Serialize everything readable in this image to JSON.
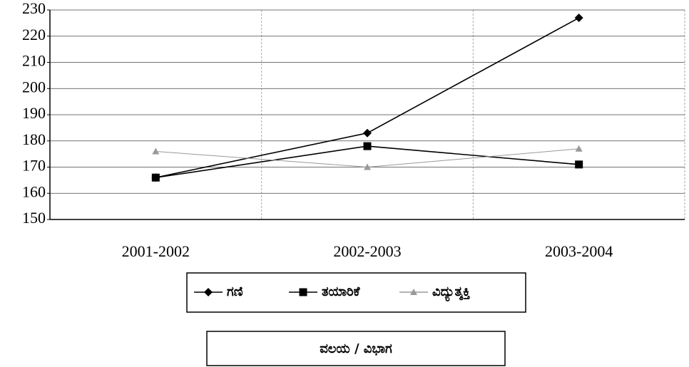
{
  "chart_data": {
    "type": "line",
    "categories": [
      "2001-2002",
      "2002-2003",
      "2003-2004"
    ],
    "series": [
      {
        "name": "ಗಣಿ",
        "color": "#000000",
        "marker": "diamond",
        "values": [
          166,
          183,
          227
        ]
      },
      {
        "name": "ತಯಾರಿಕೆ",
        "color": "#000000",
        "marker": "square",
        "values": [
          166,
          178,
          171
        ]
      },
      {
        "name": "ವಿದ್ಯುತ್ಶಕ್ತಿ",
        "color": "#999999",
        "marker": "triangle",
        "values": [
          176,
          170,
          177
        ]
      }
    ],
    "xlabel": "ವಲಯ / ವಿಭಾಗ",
    "ylim": [
      150,
      230
    ],
    "yticks": [
      150,
      160,
      170,
      180,
      190,
      200,
      210,
      220,
      230
    ],
    "grid": true
  }
}
